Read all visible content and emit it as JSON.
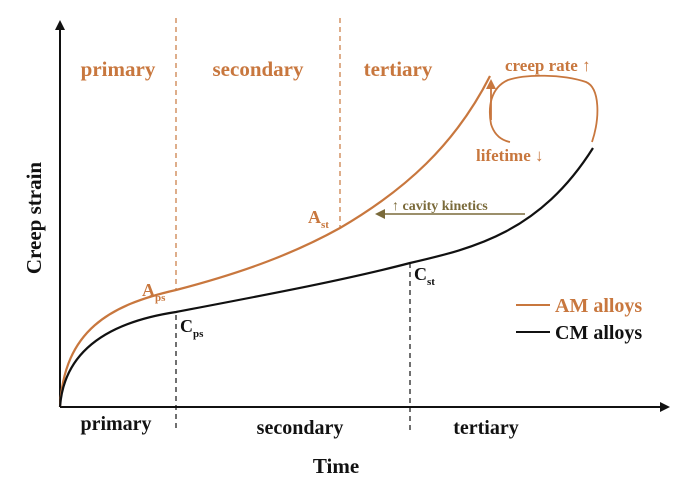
{
  "colors": {
    "am": "#c8773e",
    "cm": "#111111",
    "cavity": "#7a6a3a",
    "axis": "#111111"
  },
  "axes": {
    "xlabel": "Time",
    "ylabel": "Creep strain"
  },
  "stages_top": {
    "primary": "primary",
    "secondary": "secondary",
    "tertiary": "tertiary"
  },
  "stages_bottom": {
    "primary": "primary",
    "secondary": "secondary",
    "tertiary": "tertiary"
  },
  "points": {
    "a_ps": {
      "main": "A",
      "sub": "ps"
    },
    "a_st": {
      "main": "A",
      "sub": "st"
    },
    "c_ps": {
      "main": "C",
      "sub": "ps"
    },
    "c_st": {
      "main": "C",
      "sub": "st"
    }
  },
  "annotations": {
    "creep_rate": "creep rate ↑",
    "lifetime": "lifetime ↓",
    "cavity": "↑ cavity kinetics"
  },
  "legend": {
    "am": "AM alloys",
    "cm": "CM alloys"
  }
}
